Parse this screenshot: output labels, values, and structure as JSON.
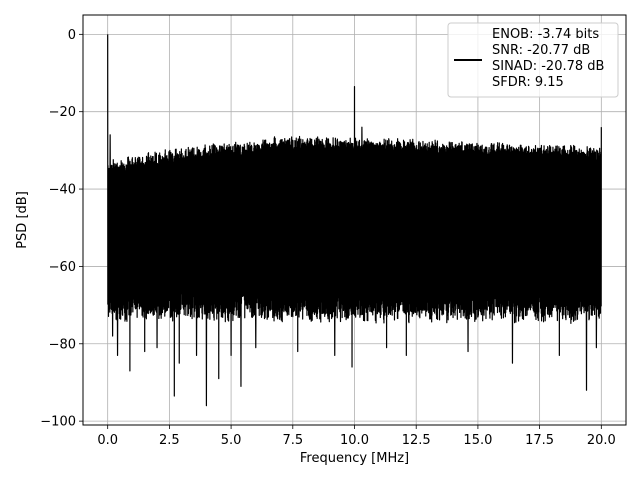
{
  "chart_data": {
    "type": "line",
    "title": "",
    "xlabel": "Frequency [MHz]",
    "ylabel": "PSD [dB]",
    "xlim": [
      -1,
      21
    ],
    "ylim": [
      -101,
      5
    ],
    "x_ticks": [
      0.0,
      2.5,
      5.0,
      7.5,
      10.0,
      12.5,
      15.0,
      17.5,
      20.0
    ],
    "x_tick_labels": [
      "0.0",
      "2.5",
      "5.0",
      "7.5",
      "10.0",
      "12.5",
      "15.0",
      "17.5",
      "20.0"
    ],
    "y_ticks": [
      0,
      -20,
      -40,
      -60,
      -80,
      -100
    ],
    "y_tick_labels": [
      "0",
      "−20",
      "−40",
      "−60",
      "−80",
      "−100"
    ],
    "grid": true,
    "legend_position": "top-right",
    "line_color": "#000000",
    "legend_lines": [
      "ENOB: -3.74 bits",
      "SNR: -20.77 dB",
      "SINAD: -20.78 dB",
      "SFDR: 9.15"
    ],
    "series": [
      {
        "x_range": [
          0,
          20
        ],
        "noise_top_profile": [
          [
            0.2,
            -32
          ],
          [
            2.5,
            -29.5
          ],
          [
            5.0,
            -27.5
          ],
          [
            7.5,
            -26
          ],
          [
            10.0,
            -26.5
          ],
          [
            12.5,
            -27
          ],
          [
            15.0,
            -27.5
          ],
          [
            17.5,
            -28
          ],
          [
            20.0,
            -29
          ]
        ],
        "noise_floor_typical": -70,
        "peaks": [
          {
            "x": 0.0,
            "y": 0.0
          },
          {
            "x": 10.0,
            "y": -13.5
          },
          {
            "x": 0.1,
            "y": -26
          },
          {
            "x": 20.0,
            "y": -24
          },
          {
            "x": 10.3,
            "y": -24
          }
        ],
        "dips": [
          {
            "x": 0.2,
            "y": -78
          },
          {
            "x": 0.4,
            "y": -83
          },
          {
            "x": 0.9,
            "y": -87
          },
          {
            "x": 1.5,
            "y": -82
          },
          {
            "x": 2.0,
            "y": -81
          },
          {
            "x": 2.7,
            "y": -93.5
          },
          {
            "x": 2.9,
            "y": -85
          },
          {
            "x": 3.6,
            "y": -83
          },
          {
            "x": 4.0,
            "y": -96
          },
          {
            "x": 4.5,
            "y": -89
          },
          {
            "x": 5.0,
            "y": -83
          },
          {
            "x": 5.4,
            "y": -91
          },
          {
            "x": 6.0,
            "y": -81
          },
          {
            "x": 7.7,
            "y": -82
          },
          {
            "x": 9.2,
            "y": -83
          },
          {
            "x": 9.9,
            "y": -86
          },
          {
            "x": 11.3,
            "y": -81
          },
          {
            "x": 12.1,
            "y": -83
          },
          {
            "x": 14.6,
            "y": -82
          },
          {
            "x": 16.4,
            "y": -85
          },
          {
            "x": 18.3,
            "y": -83
          },
          {
            "x": 19.4,
            "y": -92
          },
          {
            "x": 19.8,
            "y": -81
          }
        ]
      }
    ]
  }
}
